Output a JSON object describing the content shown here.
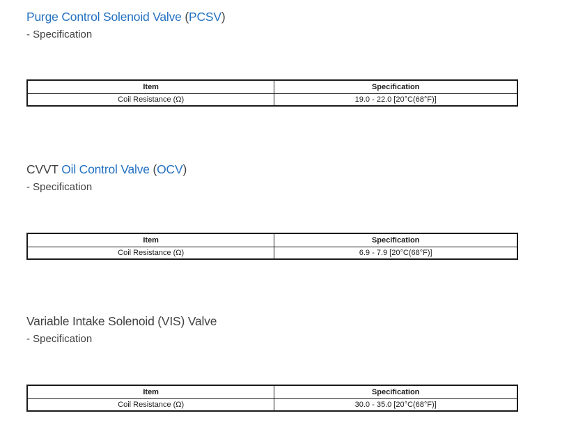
{
  "colors": {
    "link_blue": "#2471c2",
    "heading_gray": "#424242",
    "table_border": "#1a1a1a",
    "page_background": "#ffffff"
  },
  "sections": [
    {
      "id": "pcsv",
      "heading_parts": [
        {
          "text": "Purge Control Solenoid Valve ",
          "link": true
        },
        {
          "text": "(",
          "link": false
        },
        {
          "text": "PCSV",
          "link": true
        },
        {
          "text": ")",
          "link": false
        }
      ],
      "subtitle": "- Specification",
      "table": {
        "headers": [
          "Item",
          "Specification"
        ],
        "rows": [
          [
            "Coil Resistance (Ω)",
            "19.0 - 22.0 [20°C(68°F)]"
          ]
        ]
      }
    },
    {
      "id": "ocv",
      "heading_parts": [
        {
          "text": "CVVT ",
          "link": false
        },
        {
          "text": "Oil Control Valve ",
          "link": true
        },
        {
          "text": "(",
          "link": false
        },
        {
          "text": "OCV",
          "link": true
        },
        {
          "text": ")",
          "link": false
        }
      ],
      "subtitle": "- Specification",
      "table": {
        "headers": [
          "Item",
          "Specification"
        ],
        "rows": [
          [
            "Coil Resistance (Ω)",
            "6.9 - 7.9 [20°C(68°F)]"
          ]
        ]
      }
    },
    {
      "id": "vis",
      "heading_parts": [
        {
          "text": "Variable Intake Solenoid (VIS) Valve",
          "link": false
        }
      ],
      "subtitle": "- Specification",
      "table": {
        "headers": [
          "Item",
          "Specification"
        ],
        "rows": [
          [
            "Coil Resistance (Ω)",
            "30.0 - 35.0 [20°C(68°F)]"
          ]
        ]
      }
    }
  ]
}
